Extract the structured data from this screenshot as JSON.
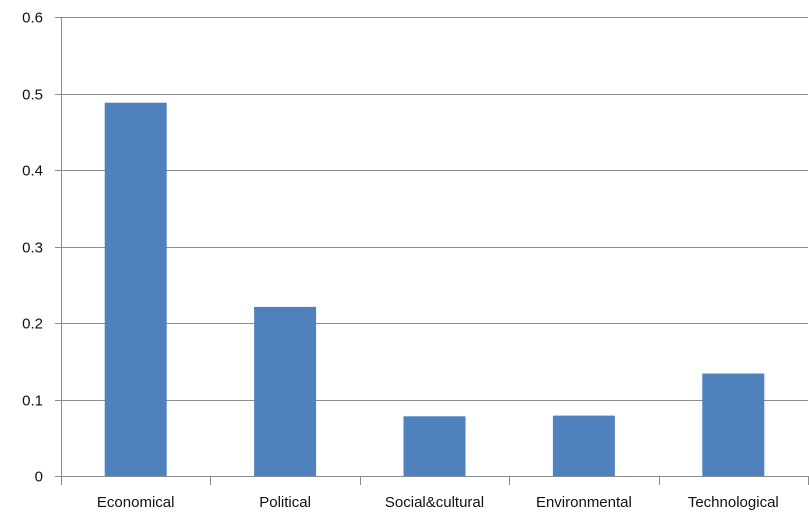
{
  "chart_data": {
    "type": "bar",
    "categories": [
      "Economical",
      "Political",
      "Social&cultural",
      "Environmental",
      "Technological"
    ],
    "values": [
      0.488,
      0.221,
      0.078,
      0.079,
      0.134
    ],
    "ylim": [
      0,
      0.6
    ],
    "yticks": [
      "0",
      "0.1",
      "0.2",
      "0.3",
      "0.4",
      "0.5",
      "0.6"
    ],
    "title": "",
    "xlabel": "",
    "ylabel": "",
    "grid": true,
    "legend": "none",
    "bar_color": "#4f81bd"
  }
}
